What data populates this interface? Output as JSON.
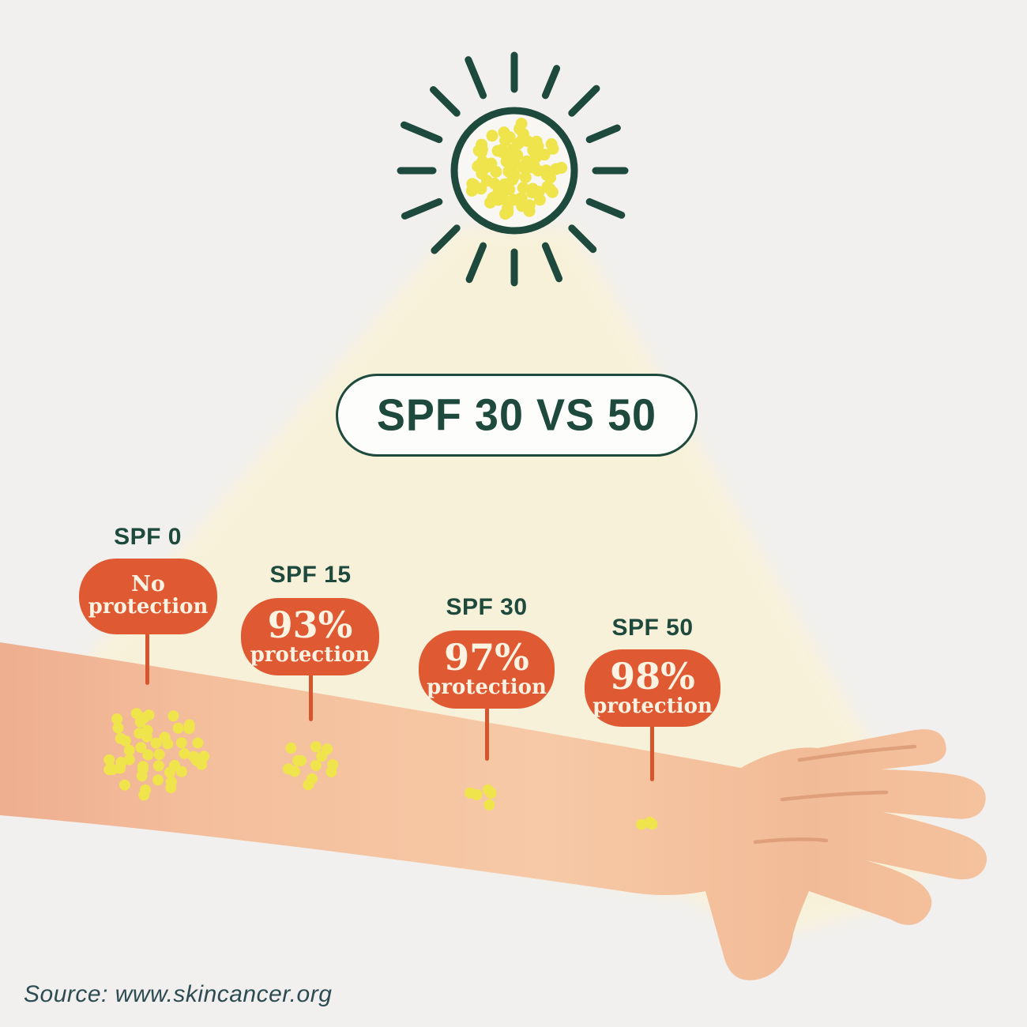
{
  "title": "SPF 30 VS 50",
  "source": "Source: www.skincancer.org",
  "sun": {
    "dot_count": 84
  },
  "spf_levels": [
    {
      "heading": "SPF 0",
      "value": "No",
      "caption": "protection",
      "uv_dots": 48
    },
    {
      "heading": "SPF 15",
      "value": "93%",
      "caption": "protection",
      "uv_dots": 13
    },
    {
      "heading": "SPF 30",
      "value": "97%",
      "caption": "protection",
      "uv_dots": 5
    },
    {
      "heading": "SPF 50",
      "value": "98%",
      "caption": "protection",
      "uv_dots": 3
    }
  ],
  "colors": {
    "background": "#f1f0ee",
    "beam_cream": "#f8f1da",
    "deep_teal": "#1d4a3c",
    "uv_yellow": "#efe44c",
    "bubble_orange": "#df5a33",
    "stem_orange": "#d7552e",
    "bubble_text_cream": "#fcf3e3",
    "skin": "#f5c3a0",
    "skin_crease": "#de9f7a"
  }
}
